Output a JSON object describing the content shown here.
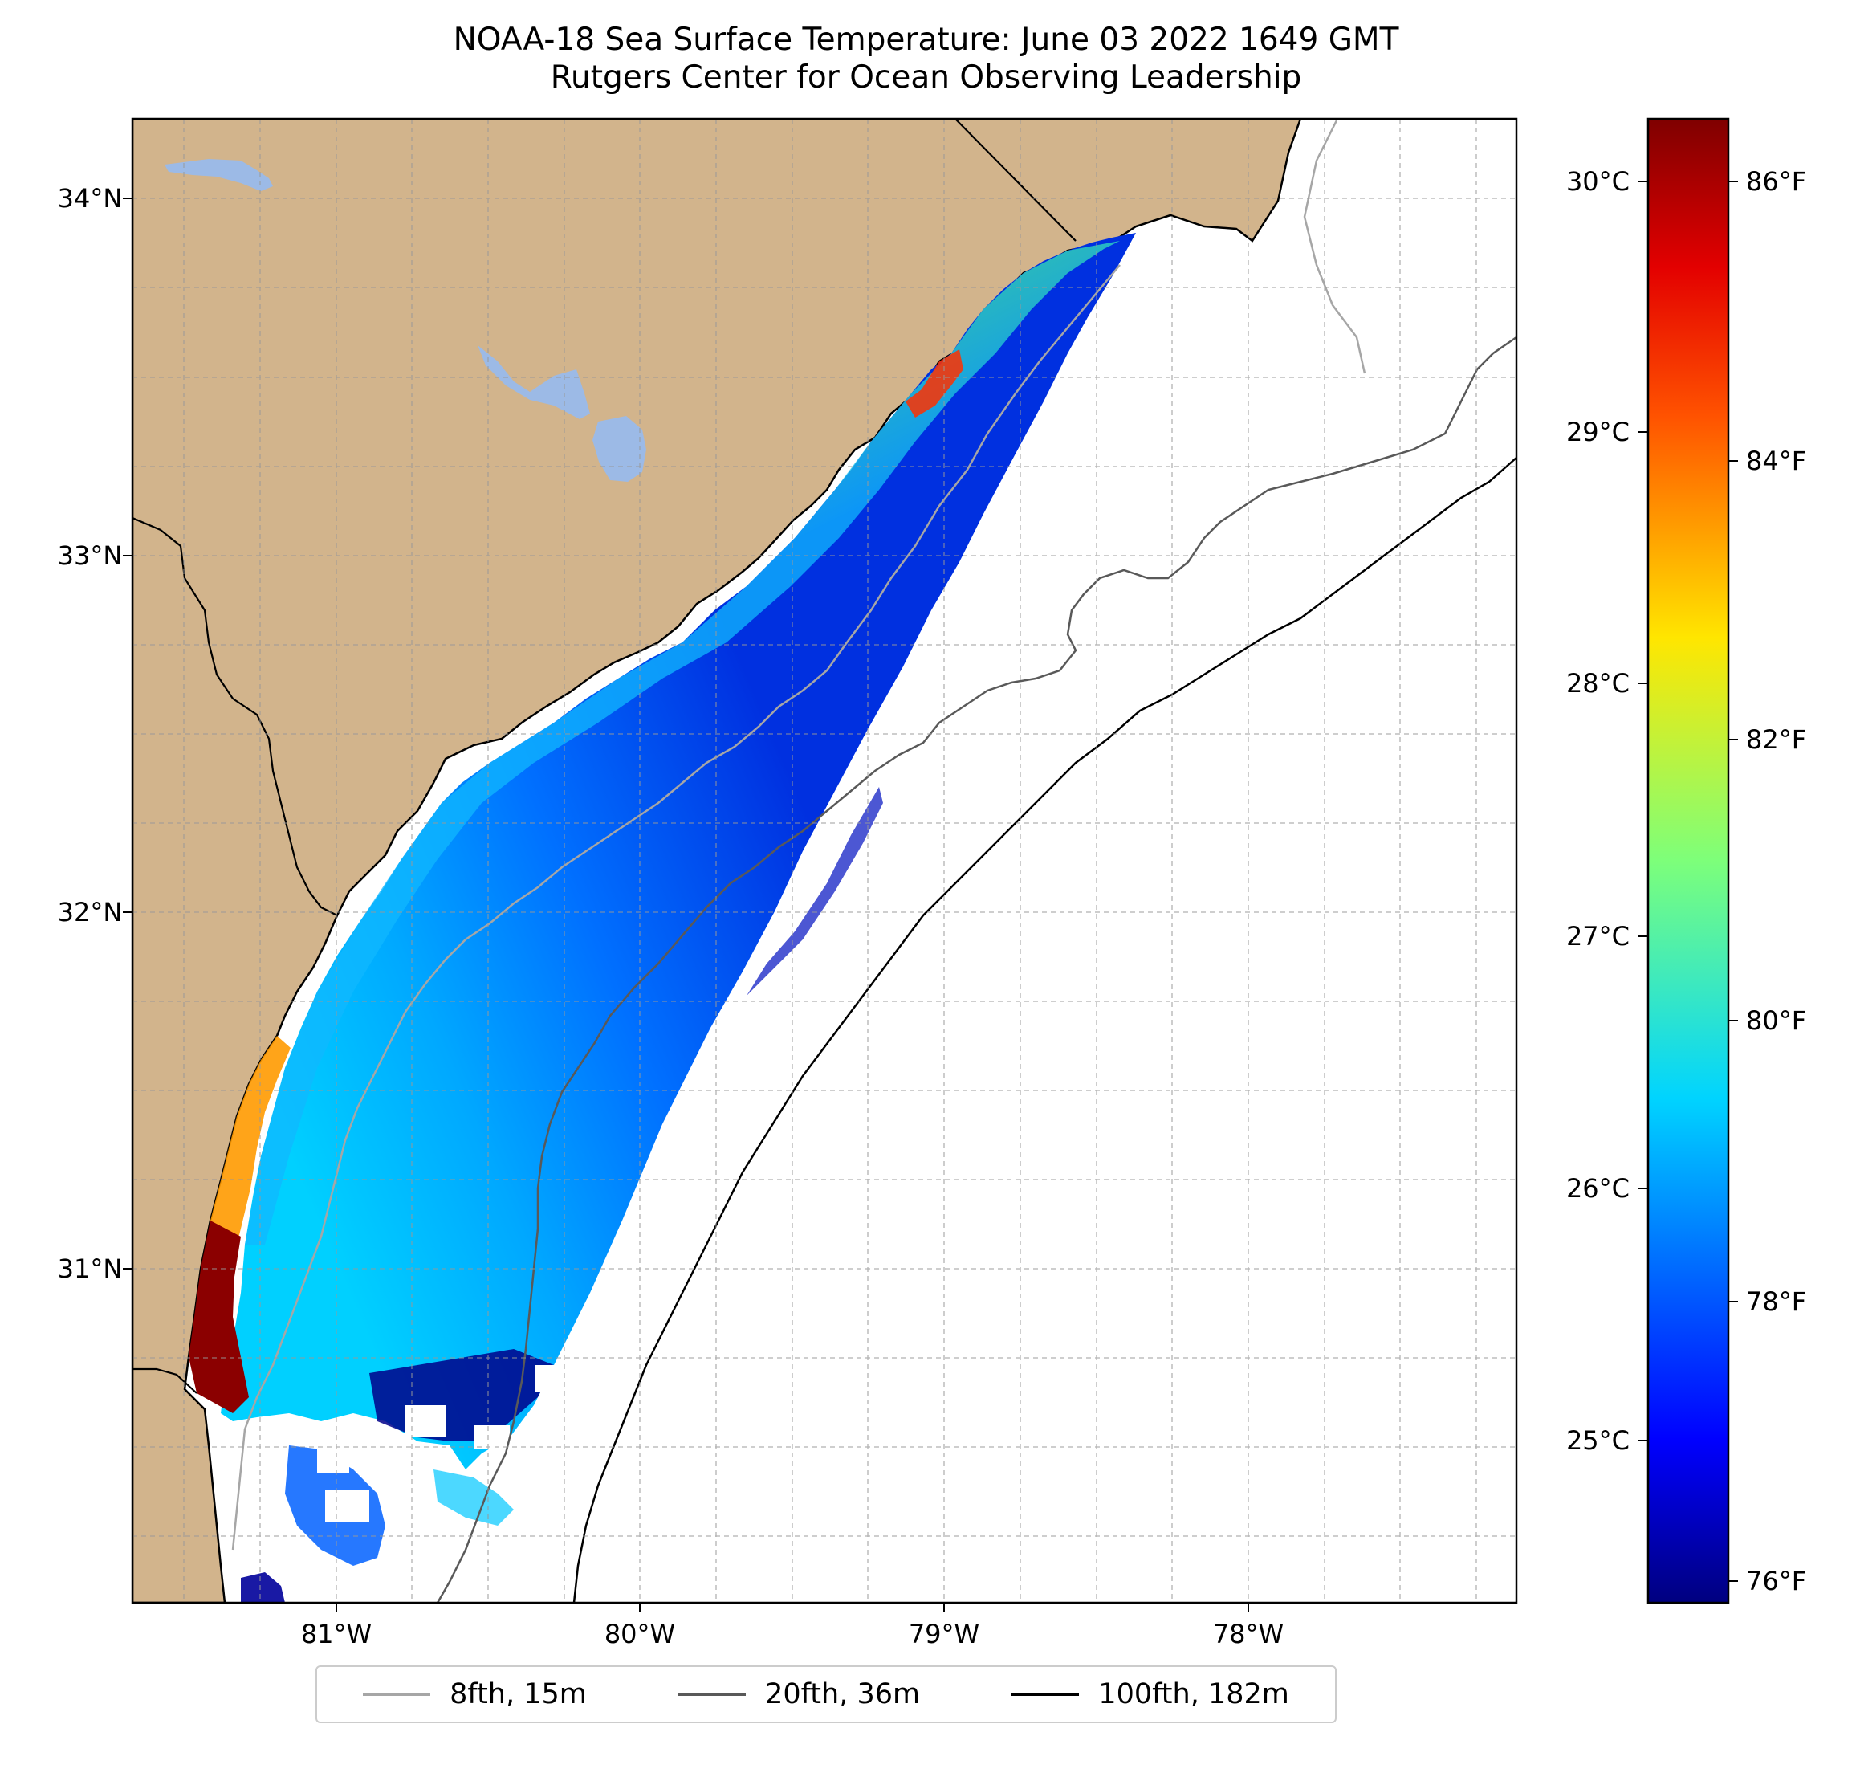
{
  "title": {
    "line1": "NOAA-18 Sea Surface Temperature: June 03 2022 1649 GMT",
    "line2": "Rutgers Center for Ocean Observing Leadership"
  },
  "map": {
    "lat_labels": [
      "34°N",
      "33°N",
      "32°N",
      "31°N"
    ],
    "lon_labels": [
      "81°W",
      "80°W",
      "79°W",
      "78°W"
    ],
    "colors": {
      "land": "#d2b48c",
      "water_body": "#9cbae6",
      "ocean_no_data": "#ffffff",
      "coastline": "#000000"
    }
  },
  "colorbar": {
    "celsius_labels": [
      "30°C",
      "29°C",
      "28°C",
      "27°C",
      "26°C",
      "25°C"
    ],
    "fahrenheit_labels": [
      "86°F",
      "84°F",
      "82°F",
      "80°F",
      "78°F",
      "76°F"
    ],
    "colormap": "jet"
  },
  "legend": {
    "items": [
      {
        "label": "8fth, 15m",
        "color": "#a6a6a6"
      },
      {
        "label": "20fth, 36m",
        "color": "#595959"
      },
      {
        "label": "100fth, 182m",
        "color": "#000000"
      }
    ]
  }
}
